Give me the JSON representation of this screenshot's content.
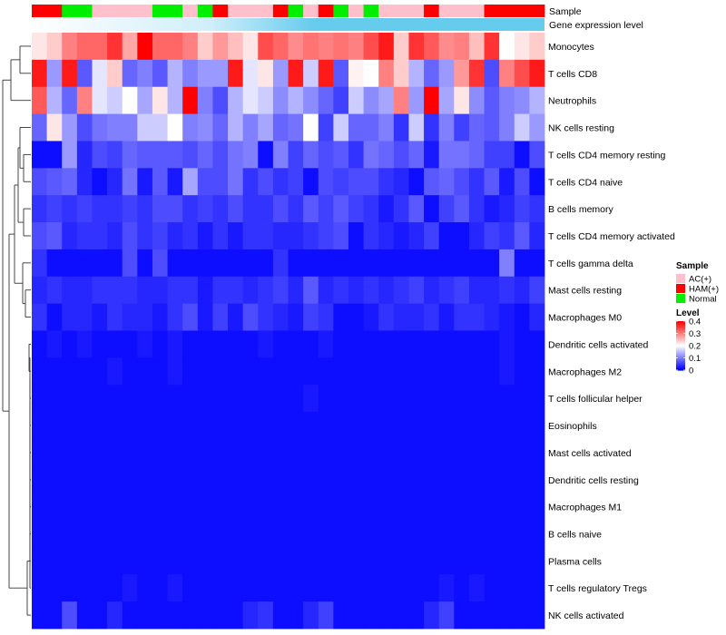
{
  "chart_data": {
    "type": "heatmap",
    "title": "",
    "n_columns": 34,
    "rows": [
      "Monocytes",
      "T cells CD8",
      "Neutrophils",
      "NK cells resting",
      "T cells CD4 memory resting",
      "T cells CD4 naive",
      "B cells memory",
      "T cells CD4 memory activated",
      "T cells gamma delta",
      "Mast cells resting",
      "Macrophages M0",
      "Dendritic cells activated",
      "Macrophages M2",
      "T cells follicular helper",
      "Eosinophils",
      "Mast cells activated",
      "Dendritic cells resting",
      "Macrophages M1",
      "B cells naive",
      "Plasma cells",
      "T cells regulatory  Tregs",
      "NK cells activated"
    ],
    "sample_annotation": {
      "label": "Sample",
      "values": [
        "HAM(+)",
        "HAM(+)",
        "Normal",
        "Normal",
        "AC(+)",
        "AC(+)",
        "AC(+)",
        "AC(+)",
        "Normal",
        "Normal",
        "AC(+)",
        "Normal",
        "HAM(+)",
        "AC(+)",
        "AC(+)",
        "AC(+)",
        "HAM(+)",
        "Normal",
        "AC(+)",
        "HAM(+)",
        "Normal",
        "AC(+)",
        "Normal",
        "AC(+)",
        "AC(+)",
        "AC(+)",
        "HAM(+)",
        "AC(+)",
        "AC(+)",
        "AC(+)",
        "HAM(+)",
        "HAM(+)",
        "HAM(+)",
        "HAM(+)"
      ]
    },
    "gene_annotation": {
      "label": "Gene expression level"
    },
    "values": [
      [
        0.22,
        0.24,
        0.3,
        0.32,
        0.32,
        0.36,
        0.27,
        0.4,
        0.32,
        0.32,
        0.3,
        0.24,
        0.28,
        0.25,
        0.22,
        0.34,
        0.32,
        0.29,
        0.31,
        0.3,
        0.31,
        0.3,
        0.34,
        0.38,
        0.24,
        0.36,
        0.33,
        0.29,
        0.3,
        0.25,
        0.36,
        0.2,
        0.22,
        0.24
      ],
      [
        0.38,
        0.12,
        0.38,
        0.07,
        0.18,
        0.24,
        0.08,
        0.1,
        0.07,
        0.14,
        0.1,
        0.12,
        0.12,
        0.38,
        0.18,
        0.22,
        0.12,
        0.38,
        0.16,
        0.38,
        0.07,
        0.21,
        0.2,
        0.3,
        0.24,
        0.14,
        0.08,
        0.12,
        0.28,
        0.36,
        0.06,
        0.3,
        0.34,
        0.38
      ],
      [
        0.33,
        0.14,
        0.08,
        0.3,
        0.18,
        0.16,
        0.2,
        0.13,
        0.22,
        0.14,
        0.4,
        0.1,
        0.06,
        0.14,
        0.18,
        0.16,
        0.11,
        0.14,
        0.11,
        0.08,
        0.05,
        0.16,
        0.11,
        0.13,
        0.3,
        0.12,
        0.4,
        0.13,
        0.22,
        0.11,
        0.07,
        0.1,
        0.11,
        0.14
      ],
      [
        0.08,
        0.22,
        0.12,
        0.06,
        0.09,
        0.1,
        0.1,
        0.16,
        0.16,
        0.2,
        0.1,
        0.11,
        0.08,
        0.14,
        0.1,
        0.13,
        0.08,
        0.09,
        0.2,
        0.05,
        0.16,
        0.08,
        0.08,
        0.1,
        0.04,
        0.16,
        0.04,
        0.1,
        0.05,
        0.08,
        0.07,
        0.1,
        0.16,
        0.12
      ],
      [
        0.01,
        0.01,
        0.12,
        0.03,
        0.06,
        0.05,
        0.08,
        0.07,
        0.07,
        0.07,
        0.06,
        0.08,
        0.06,
        0.09,
        0.1,
        0.01,
        0.1,
        0.05,
        0.08,
        0.06,
        0.07,
        0.04,
        0.09,
        0.08,
        0.06,
        0.08,
        0.02,
        0.09,
        0.09,
        0.08,
        0.05,
        0.05,
        0.01,
        0.06
      ],
      [
        0.06,
        0.07,
        0.08,
        0.03,
        0.01,
        0.03,
        0.09,
        0.02,
        0.07,
        0.02,
        0.13,
        0.06,
        0.06,
        0.09,
        0.04,
        0.06,
        0.04,
        0.05,
        0.01,
        0.06,
        0.05,
        0.06,
        0.06,
        0.04,
        0.03,
        0.01,
        0.07,
        0.08,
        0.06,
        0.04,
        0.07,
        0.02,
        0.06,
        0.01
      ],
      [
        0.04,
        0.05,
        0.04,
        0.05,
        0.04,
        0.04,
        0.05,
        0.04,
        0.06,
        0.06,
        0.04,
        0.05,
        0.04,
        0.06,
        0.04,
        0.04,
        0.06,
        0.04,
        0.07,
        0.05,
        0.07,
        0.05,
        0.04,
        0.02,
        0.04,
        0.07,
        0.01,
        0.05,
        0.07,
        0.04,
        0.02,
        0.03,
        0.05,
        0.04
      ],
      [
        0.06,
        0.07,
        0.03,
        0.04,
        0.04,
        0.03,
        0.06,
        0.04,
        0.05,
        0.03,
        0.04,
        0.02,
        0.04,
        0.02,
        0.04,
        0.04,
        0.03,
        0.03,
        0.04,
        0.05,
        0.06,
        0.01,
        0.04,
        0.03,
        0.02,
        0.03,
        0.05,
        0.01,
        0.01,
        0.03,
        0.05,
        0.04,
        0.07,
        0.03
      ],
      [
        0.04,
        0.01,
        0.01,
        0.01,
        0.01,
        0.01,
        0.06,
        0.01,
        0.06,
        0.01,
        0.01,
        0.01,
        0.01,
        0.01,
        0.01,
        0.01,
        0.04,
        0.01,
        0.01,
        0.01,
        0.01,
        0.01,
        0.01,
        0.01,
        0.01,
        0.01,
        0.01,
        0.01,
        0.01,
        0.01,
        0.01,
        0.1,
        0.01,
        0.01
      ],
      [
        0.03,
        0.04,
        0.03,
        0.03,
        0.04,
        0.04,
        0.04,
        0.03,
        0.03,
        0.04,
        0.04,
        0.02,
        0.04,
        0.04,
        0.03,
        0.04,
        0.05,
        0.03,
        0.07,
        0.03,
        0.04,
        0.03,
        0.04,
        0.03,
        0.04,
        0.05,
        0.03,
        0.04,
        0.05,
        0.03,
        0.03,
        0.04,
        0.03,
        0.05
      ],
      [
        0.04,
        0.01,
        0.03,
        0.03,
        0.02,
        0.04,
        0.03,
        0.03,
        0.02,
        0.04,
        0.06,
        0.02,
        0.05,
        0.02,
        0.06,
        0.04,
        0.03,
        0.02,
        0.05,
        0.04,
        0.01,
        0.01,
        0.02,
        0.04,
        0.03,
        0.03,
        0.04,
        0.02,
        0.04,
        0.04,
        0.03,
        0.02,
        0.01,
        0.03
      ],
      [
        0.01,
        0.02,
        0.01,
        0.02,
        0.01,
        0.01,
        0.01,
        0.02,
        0.01,
        0.02,
        0.01,
        0.01,
        0.01,
        0.01,
        0.01,
        0.02,
        0.01,
        0.01,
        0.01,
        0.02,
        0.01,
        0.01,
        0.01,
        0.01,
        0.01,
        0.01,
        0.01,
        0.01,
        0.01,
        0.01,
        0.01,
        0.02,
        0.01,
        0.01
      ],
      [
        0.01,
        0.01,
        0.01,
        0.01,
        0.01,
        0.02,
        0.01,
        0.01,
        0.01,
        0.02,
        0.01,
        0.01,
        0.01,
        0.01,
        0.01,
        0.01,
        0.01,
        0.01,
        0.01,
        0.01,
        0.01,
        0.01,
        0.01,
        0.01,
        0.01,
        0.01,
        0.01,
        0.01,
        0.01,
        0.01,
        0.01,
        0.02,
        0.01,
        0.01
      ],
      [
        0.01,
        0.01,
        0.01,
        0.01,
        0.01,
        0.01,
        0.01,
        0.01,
        0.01,
        0.01,
        0.01,
        0.01,
        0.01,
        0.01,
        0.01,
        0.01,
        0.01,
        0.01,
        0.02,
        0.01,
        0.01,
        0.01,
        0.01,
        0.01,
        0.01,
        0.01,
        0.01,
        0.01,
        0.01,
        0.01,
        0.01,
        0.01,
        0.01,
        0.01
      ],
      [
        0.01,
        0.01,
        0.01,
        0.01,
        0.01,
        0.01,
        0.01,
        0.01,
        0.01,
        0.01,
        0.01,
        0.01,
        0.01,
        0.01,
        0.01,
        0.01,
        0.01,
        0.01,
        0.01,
        0.01,
        0.01,
        0.01,
        0.01,
        0.01,
        0.01,
        0.01,
        0.01,
        0.01,
        0.01,
        0.01,
        0.01,
        0.01,
        0.01,
        0.01
      ],
      [
        0.01,
        0.01,
        0.01,
        0.01,
        0.01,
        0.01,
        0.01,
        0.01,
        0.01,
        0.01,
        0.01,
        0.01,
        0.01,
        0.01,
        0.01,
        0.01,
        0.01,
        0.01,
        0.01,
        0.01,
        0.01,
        0.01,
        0.01,
        0.01,
        0.01,
        0.01,
        0.01,
        0.01,
        0.01,
        0.01,
        0.01,
        0.01,
        0.01,
        0.01
      ],
      [
        0.01,
        0.01,
        0.01,
        0.01,
        0.01,
        0.01,
        0.01,
        0.01,
        0.01,
        0.01,
        0.01,
        0.01,
        0.01,
        0.01,
        0.01,
        0.01,
        0.01,
        0.01,
        0.01,
        0.01,
        0.01,
        0.01,
        0.01,
        0.01,
        0.01,
        0.01,
        0.01,
        0.01,
        0.01,
        0.01,
        0.01,
        0.01,
        0.01,
        0.01
      ],
      [
        0.01,
        0.01,
        0.01,
        0.01,
        0.01,
        0.01,
        0.01,
        0.01,
        0.01,
        0.01,
        0.01,
        0.01,
        0.01,
        0.01,
        0.01,
        0.01,
        0.01,
        0.01,
        0.01,
        0.01,
        0.01,
        0.01,
        0.01,
        0.01,
        0.01,
        0.01,
        0.01,
        0.01,
        0.01,
        0.01,
        0.01,
        0.01,
        0.01,
        0.01
      ],
      [
        0.01,
        0.01,
        0.01,
        0.01,
        0.01,
        0.01,
        0.01,
        0.01,
        0.01,
        0.01,
        0.01,
        0.01,
        0.01,
        0.01,
        0.01,
        0.01,
        0.01,
        0.01,
        0.01,
        0.01,
        0.01,
        0.01,
        0.01,
        0.01,
        0.01,
        0.01,
        0.01,
        0.01,
        0.01,
        0.01,
        0.01,
        0.01,
        0.01,
        0.01
      ],
      [
        0.01,
        0.01,
        0.01,
        0.01,
        0.01,
        0.01,
        0.01,
        0.01,
        0.01,
        0.01,
        0.01,
        0.01,
        0.01,
        0.01,
        0.01,
        0.01,
        0.01,
        0.01,
        0.01,
        0.01,
        0.01,
        0.01,
        0.01,
        0.01,
        0.01,
        0.01,
        0.01,
        0.01,
        0.01,
        0.01,
        0.01,
        0.01,
        0.01,
        0.01
      ],
      [
        0.01,
        0.01,
        0.01,
        0.01,
        0.01,
        0.01,
        0.02,
        0.01,
        0.01,
        0.02,
        0.01,
        0.01,
        0.01,
        0.01,
        0.01,
        0.01,
        0.01,
        0.01,
        0.01,
        0.01,
        0.01,
        0.01,
        0.01,
        0.01,
        0.01,
        0.01,
        0.01,
        0.02,
        0.01,
        0.02,
        0.01,
        0.01,
        0.01,
        0.01
      ],
      [
        0.01,
        0.01,
        0.06,
        0.01,
        0.01,
        0.03,
        0.01,
        0.01,
        0.01,
        0.01,
        0.01,
        0.01,
        0.01,
        0.01,
        0.03,
        0.04,
        0.01,
        0.01,
        0.03,
        0.05,
        0.01,
        0.01,
        0.01,
        0.01,
        0.01,
        0.01,
        0.03,
        0.05,
        0.01,
        0.01,
        0.01,
        0.01,
        0.01,
        0.01
      ]
    ],
    "legend": {
      "sample": {
        "title": "Sample",
        "entries": [
          "AC(+)",
          "HAM(+)",
          "Normal"
        ]
      },
      "level": {
        "title": "Level",
        "range": [
          0,
          0.4
        ],
        "ticks": [
          "0.4",
          "0.3",
          "0.2",
          "0.1",
          "0"
        ]
      }
    }
  },
  "colors": {
    "high": "#ff0000",
    "mid": "#ffffff",
    "low": "#0000ff",
    "ac_plus": "#ffc0cb",
    "ham_plus": "#ff0000",
    "normal": "#00ee00",
    "gene_annotation": "#66ccee",
    "dendrogram": "#333333"
  }
}
